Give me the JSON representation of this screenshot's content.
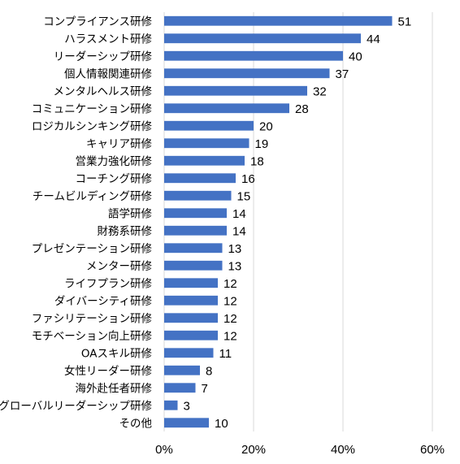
{
  "chart_data": {
    "type": "bar",
    "orientation": "horizontal",
    "categories": [
      "コンプライアンス研修",
      "ハラスメント研修",
      "リーダーシップ研修",
      "個人情報関連研修",
      "メンタルヘルス研修",
      "コミュニケーション研修",
      "ロジカルシンキング研修",
      "キャリア研修",
      "営業力強化研修",
      "コーチング研修",
      "チームビルディング研修",
      "語学研修",
      "財務系研修",
      "プレゼンテーション研修",
      "メンター研修",
      "ライフプラン研修",
      "ダイバーシティ研修",
      "ファシリテーション研修",
      "モチベーション向上研修",
      "OAスキル研修",
      "女性リーダー研修",
      "海外赴任者研修",
      "グローバルリーダーシップ研修",
      "その他"
    ],
    "values": [
      51,
      44,
      40,
      37,
      32,
      28,
      20,
      19,
      18,
      16,
      15,
      14,
      14,
      13,
      13,
      12,
      12,
      12,
      12,
      11,
      8,
      7,
      3,
      10
    ],
    "xlim": [
      0,
      60
    ],
    "xticks": [
      "0%",
      "20%",
      "40%",
      "60%"
    ],
    "xtick_values": [
      0,
      20,
      40,
      60
    ],
    "grid": "vertical",
    "title": "",
    "xlabel": "",
    "ylabel": "",
    "bar_color": "#4472C4",
    "grid_color": "#D9D9D9"
  }
}
